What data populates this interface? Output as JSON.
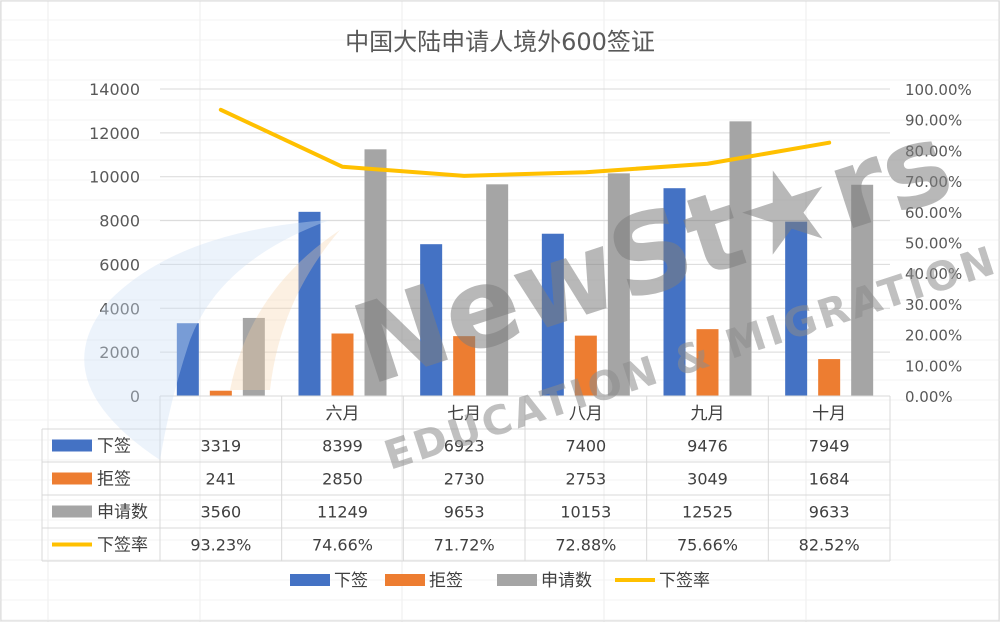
{
  "chart_data": {
    "type": "bar",
    "title": "中国大陆申请人境外600签证",
    "categories": [
      "",
      "六月",
      "七月",
      "八月",
      "九月",
      "十月"
    ],
    "series": [
      {
        "name": "下签",
        "kind": "bar",
        "axis": "left",
        "color": "#4472C4",
        "values": [
          3319,
          8399,
          6923,
          7400,
          9476,
          7949
        ]
      },
      {
        "name": "拒签",
        "kind": "bar",
        "axis": "left",
        "color": "#ED7D31",
        "values": [
          241,
          2850,
          2730,
          2753,
          3049,
          1684
        ]
      },
      {
        "name": "申请数",
        "kind": "bar",
        "axis": "left",
        "color": "#A5A5A5",
        "values": [
          3560,
          11249,
          9653,
          10153,
          12525,
          9633
        ]
      },
      {
        "name": "下签率",
        "kind": "line",
        "axis": "right",
        "color": "#FFC000",
        "values": [
          93.23,
          74.66,
          71.72,
          72.88,
          75.66,
          82.52
        ]
      }
    ],
    "table_text": [
      [
        "3319",
        "8399",
        "6923",
        "7400",
        "9476",
        "7949"
      ],
      [
        "241",
        "2850",
        "2730",
        "2753",
        "3049",
        "1684"
      ],
      [
        "3560",
        "11249",
        "9653",
        "10153",
        "12525",
        "9633"
      ],
      [
        "93.23%",
        "74.66%",
        "71.72%",
        "72.88%",
        "75.66%",
        "82.52%"
      ]
    ],
    "y_left": {
      "min": 0,
      "max": 14000,
      "ticks": [
        "0",
        "2000",
        "4000",
        "6000",
        "8000",
        "10000",
        "12000",
        "14000"
      ]
    },
    "y_right": {
      "min": 0,
      "max": 100,
      "ticks": [
        "0.00%",
        "10.00%",
        "20.00%",
        "30.00%",
        "40.00%",
        "50.00%",
        "60.00%",
        "70.00%",
        "80.00%",
        "90.00%",
        "100.00%"
      ]
    },
    "grid": true,
    "legend": "bottom"
  },
  "watermark": {
    "text_main": "NewSt★rs",
    "text_sub": "EDUCATION & MIGRATION"
  }
}
